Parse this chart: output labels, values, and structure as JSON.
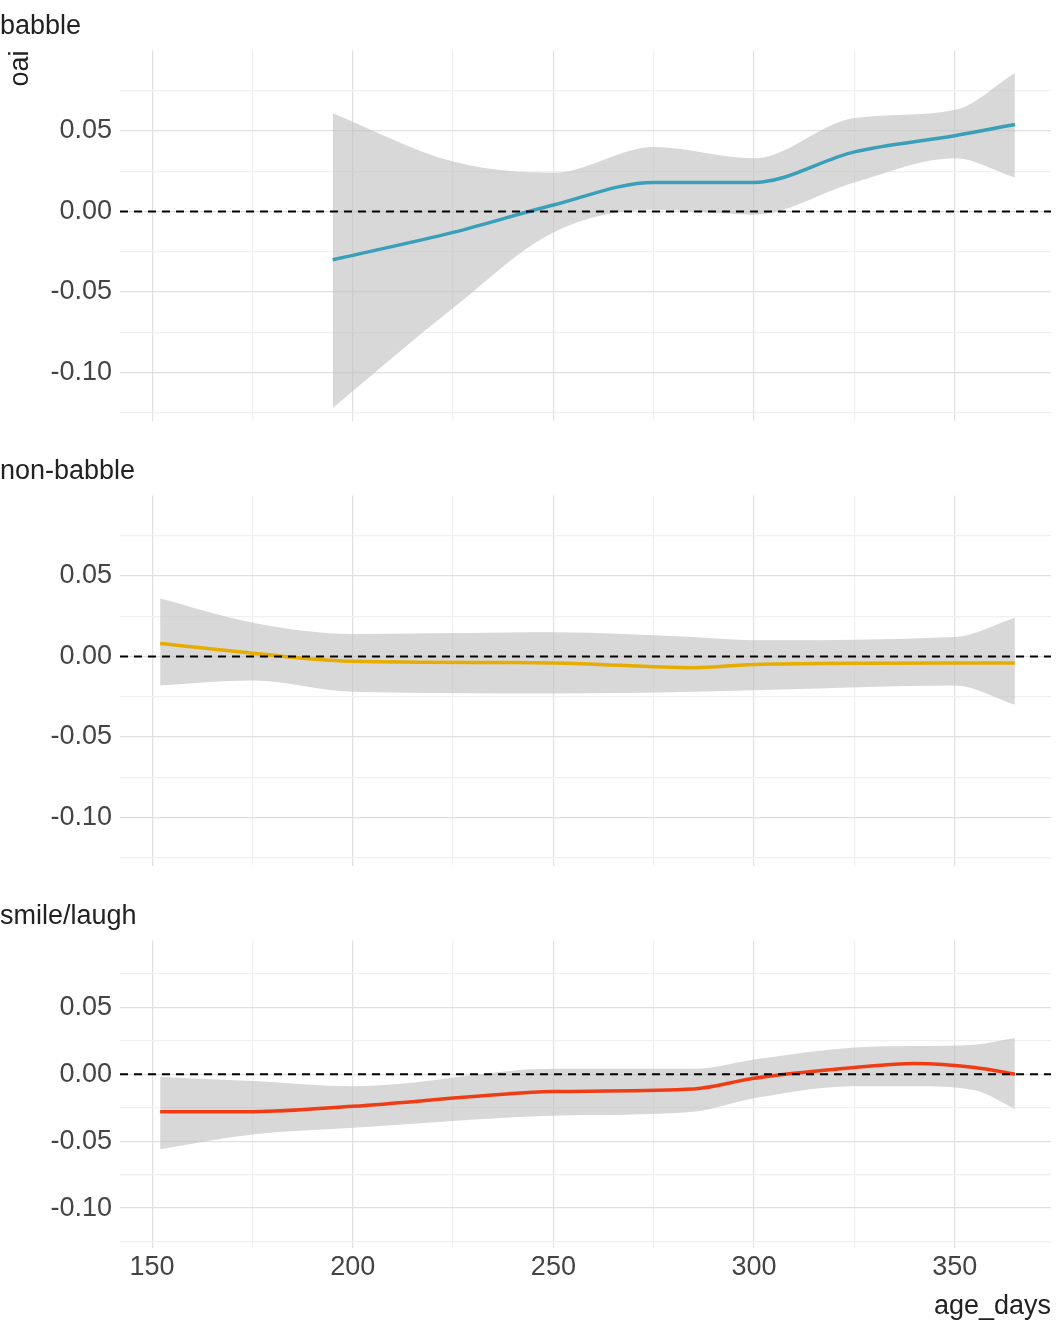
{
  "chart_data": [
    {
      "type": "line",
      "title": "babble",
      "ylabel": "oai",
      "xlim": [
        142,
        374
      ],
      "ylim": [
        -0.13,
        0.1
      ],
      "tick_labels": "y",
      "grid": true,
      "legend": false,
      "marker": "none",
      "line_style": "solid",
      "xticks": [
        150,
        {
          "value": 175,
          "label": null
        },
        200,
        {
          "value": 225,
          "label": null
        },
        250,
        {
          "value": 275,
          "label": null
        },
        300,
        {
          "value": 325,
          "label": null
        },
        350
      ],
      "yticks": [
        {
          "value": -0.125,
          "label": null
        },
        {
          "value": -0.1,
          "label": "-0.10"
        },
        {
          "value": -0.075,
          "label": null
        },
        {
          "value": -0.05,
          "label": "-0.05"
        },
        {
          "value": -0.025,
          "label": null
        },
        {
          "value": 0,
          "label": "0.00"
        },
        {
          "value": 0.025,
          "label": null
        },
        {
          "value": 0.05,
          "label": "0.05"
        },
        {
          "value": 0.075,
          "label": null
        }
      ],
      "ref_lines": [
        {
          "axis": "y",
          "value": 0,
          "color": "#000000",
          "line_style": "dashed"
        }
      ],
      "series": [
        {
          "color": "#3a9fb8",
          "x": [
            195,
            225,
            250,
            275,
            300,
            325,
            350,
            365
          ],
          "values": [
            -0.03,
            -0.013,
            0.004,
            0.018,
            0.018,
            0.037,
            0.047,
            0.054
          ],
          "upper": [
            0.061,
            0.031,
            0.024,
            0.04,
            0.033,
            0.058,
            0.063,
            0.086
          ],
          "lower": [
            -0.122,
            -0.06,
            -0.013,
            0.001,
            -0.002,
            0.018,
            0.033,
            0.021
          ]
        }
      ]
    },
    {
      "type": "line",
      "title": "non-babble",
      "xlim": [
        142,
        374
      ],
      "ylim": [
        -0.13,
        0.1
      ],
      "tick_labels": "y",
      "grid": true,
      "legend": false,
      "marker": "none",
      "line_style": "solid",
      "xticks": [
        150,
        {
          "value": 175,
          "label": null
        },
        200,
        {
          "value": 225,
          "label": null
        },
        250,
        {
          "value": 275,
          "label": null
        },
        300,
        {
          "value": 325,
          "label": null
        },
        350
      ],
      "yticks": [
        {
          "value": -0.125,
          "label": null
        },
        {
          "value": -0.1,
          "label": "-0.10"
        },
        {
          "value": -0.075,
          "label": null
        },
        {
          "value": -0.05,
          "label": "-0.05"
        },
        {
          "value": -0.025,
          "label": null
        },
        {
          "value": 0,
          "label": "0.00"
        },
        {
          "value": 0.025,
          "label": null
        },
        {
          "value": 0.05,
          "label": "0.05"
        },
        {
          "value": 0.075,
          "label": null
        }
      ],
      "ref_lines": [
        {
          "axis": "y",
          "value": 0,
          "color": "#000000",
          "line_style": "dashed"
        }
      ],
      "series": [
        {
          "color": "#e6ad00",
          "x": [
            152,
            175,
            200,
            250,
            285,
            300,
            350,
            365
          ],
          "values": [
            0.008,
            0.002,
            -0.003,
            -0.004,
            -0.007,
            -0.005,
            -0.004,
            -0.004
          ],
          "upper": [
            0.036,
            0.021,
            0.014,
            0.015,
            0.012,
            0.01,
            0.012,
            0.024
          ],
          "lower": [
            -0.018,
            -0.015,
            -0.022,
            -0.023,
            -0.022,
            -0.021,
            -0.018,
            -0.03
          ]
        }
      ]
    },
    {
      "type": "line",
      "title": "smile/laugh",
      "xlabel": "age_days",
      "xlim": [
        142,
        374
      ],
      "ylim": [
        -0.13,
        0.1
      ],
      "grid": true,
      "legend": false,
      "marker": "none",
      "line_style": "solid",
      "xticks": [
        150,
        {
          "value": 175,
          "label": null
        },
        200,
        {
          "value": 225,
          "label": null
        },
        250,
        {
          "value": 275,
          "label": null
        },
        300,
        {
          "value": 325,
          "label": null
        },
        350
      ],
      "yticks": [
        {
          "value": -0.125,
          "label": null
        },
        {
          "value": -0.1,
          "label": "-0.10"
        },
        {
          "value": -0.075,
          "label": null
        },
        {
          "value": -0.05,
          "label": "-0.05"
        },
        {
          "value": -0.025,
          "label": null
        },
        {
          "value": 0,
          "label": "0.00"
        },
        {
          "value": 0.025,
          "label": null
        },
        {
          "value": 0.05,
          "label": "0.05"
        },
        {
          "value": 0.075,
          "label": null
        }
      ],
      "ref_lines": [
        {
          "axis": "y",
          "value": 0,
          "color": "#000000",
          "line_style": "dashed"
        }
      ],
      "series": [
        {
          "color": "#f03c14",
          "x": [
            152,
            175,
            200,
            250,
            285,
            300,
            325,
            340,
            355,
            365
          ],
          "values": [
            -0.028,
            -0.028,
            -0.024,
            -0.013,
            -0.011,
            -0.003,
            0.005,
            0.008,
            0.005,
            0.0
          ],
          "upper": [
            -0.002,
            -0.005,
            -0.009,
            0.004,
            0.004,
            0.011,
            0.02,
            0.021,
            0.022,
            0.027
          ],
          "lower": [
            -0.056,
            -0.045,
            -0.04,
            -0.031,
            -0.028,
            -0.018,
            -0.009,
            -0.009,
            -0.012,
            -0.026
          ]
        }
      ]
    }
  ]
}
